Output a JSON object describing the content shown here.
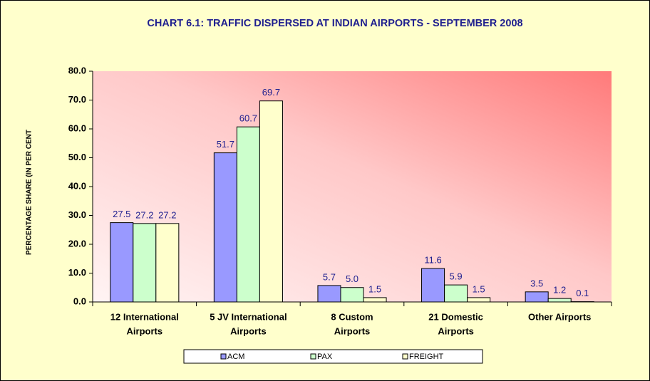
{
  "chart_data": {
    "type": "bar",
    "title": "CHART 6.1: TRAFFIC DISPERSED AT INDIAN AIRPORTS - SEPTEMBER 2008",
    "y_axis_label": "PERCENTAGE SHARE (IN PER CENT",
    "categories": [
      [
        "12 International",
        "Airports"
      ],
      [
        "5 JV International",
        "Airports"
      ],
      [
        "8 Custom",
        "Airports"
      ],
      [
        "21 Domestic",
        "Airports"
      ],
      [
        "Other Airports"
      ]
    ],
    "series": [
      {
        "name": "ACM",
        "color": "#9999ff",
        "values": [
          27.5,
          51.7,
          5.7,
          11.6,
          3.5
        ],
        "value_labels": [
          "27.5",
          "51.7",
          "5.7",
          "11.6",
          "3.5"
        ]
      },
      {
        "name": "PAX",
        "color": "#ccffcc",
        "values": [
          27.2,
          60.7,
          5.0,
          5.9,
          1.2
        ],
        "value_labels": [
          "27.2",
          "60.7",
          "5.0",
          "5.9",
          "1.2"
        ]
      },
      {
        "name": "FREIGHT",
        "color": "#ffffcc",
        "values": [
          27.2,
          69.7,
          1.5,
          1.5,
          0.1
        ],
        "value_labels": [
          "27.2",
          "69.7",
          "1.5",
          "1.5",
          "0.1"
        ]
      }
    ],
    "ylim": [
      0,
      80
    ],
    "yticks": [
      {
        "value": 0,
        "label": "0.0"
      },
      {
        "value": 10,
        "label": "10.0"
      },
      {
        "value": 20,
        "label": "20.0"
      },
      {
        "value": 30,
        "label": "30.0"
      },
      {
        "value": 40,
        "label": "40.0"
      },
      {
        "value": 50,
        "label": "50.0"
      },
      {
        "value": 60,
        "label": "60.0"
      },
      {
        "value": 70,
        "label": "70.0"
      },
      {
        "value": 80,
        "label": "80.0"
      }
    ],
    "legend": "bottom"
  }
}
